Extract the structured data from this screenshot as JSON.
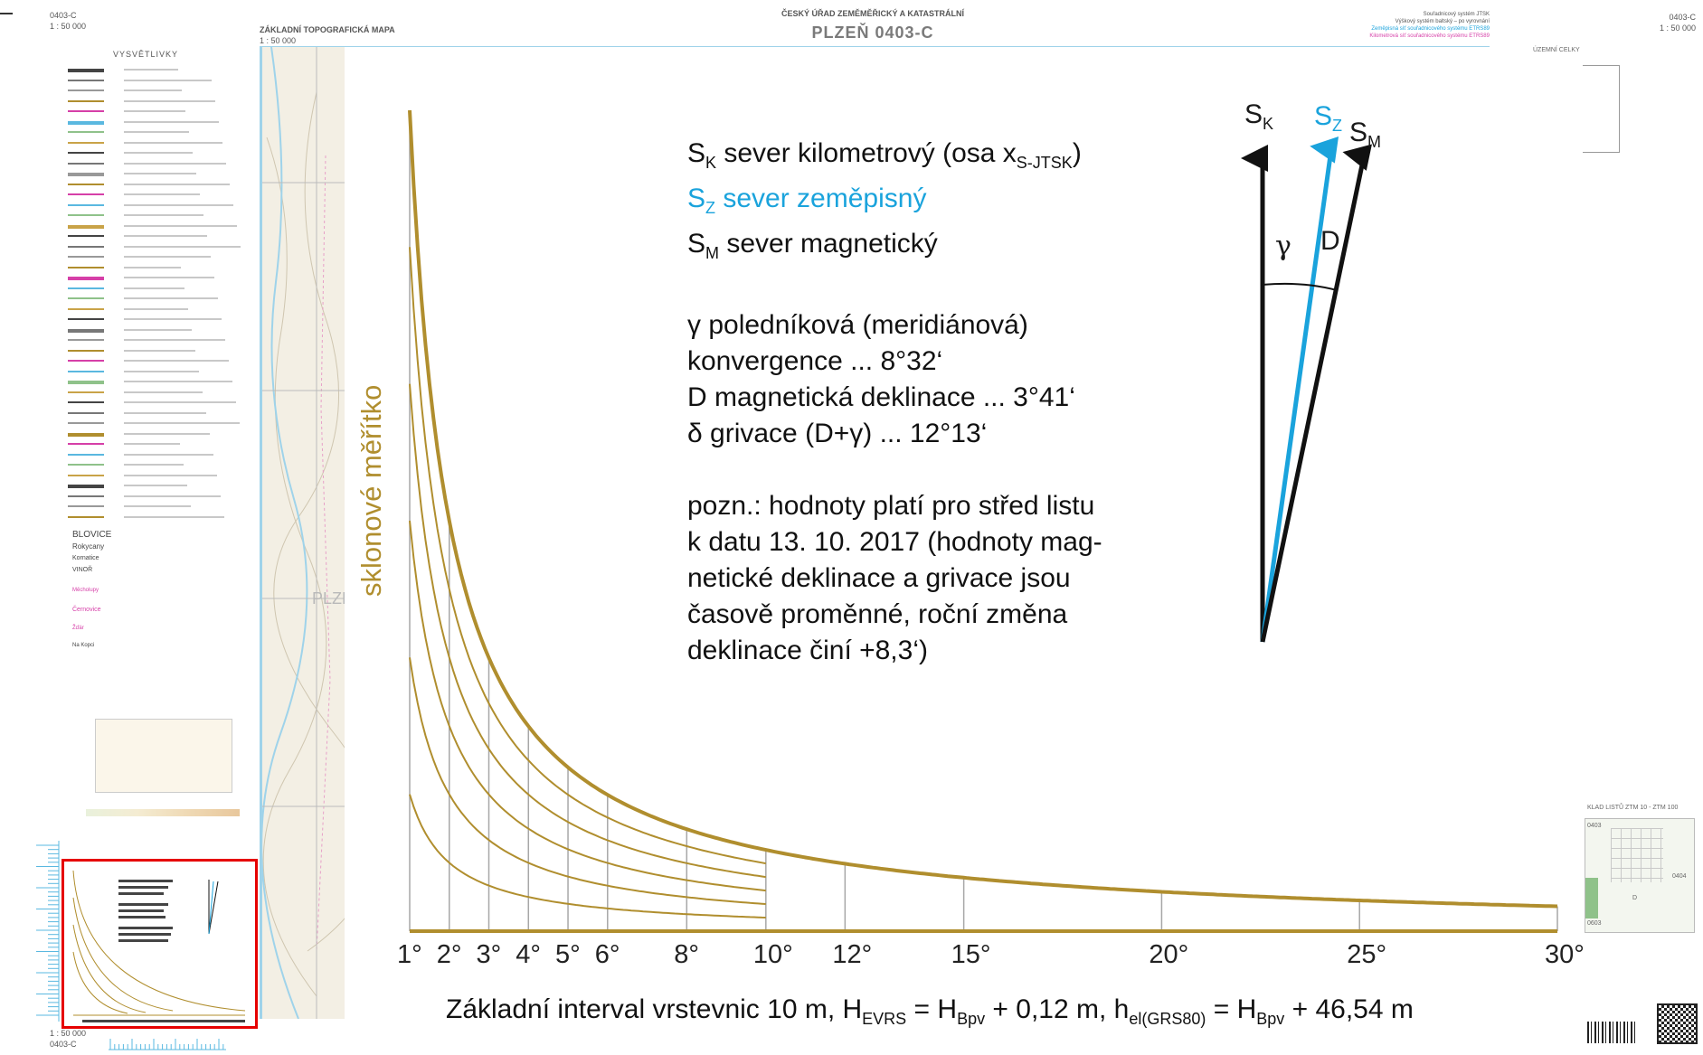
{
  "header": {
    "sheet_code_left": "0403-C",
    "scale_left": "1 : 50 000",
    "map_series": "ZÁKLADNÍ TOPOGRAFICKÁ MAPA",
    "map_series_scale": "1 : 50 000",
    "agency": "ČESKÝ ÚŘAD ZEMĚMĚŘICKÝ A KATASTRÁLNÍ",
    "map_title": "PLZEŇ 0403-C",
    "sheet_code_right": "0403-C",
    "scale_right": "1 : 50 000",
    "coord_systems": [
      {
        "text": "Souřadnicový systém JTSK",
        "color": "#555555"
      },
      {
        "text": "Výškový systém baltský – po vyrovnání",
        "color": "#555555"
      },
      {
        "text": "Zeměpisná síť souřadnicového systému ETRS89",
        "color": "#1aa3dc"
      },
      {
        "text": "Kilometrová síť souřadnicového systému ETRS89",
        "color": "#d63fa8"
      }
    ]
  },
  "legend": {
    "title": "VYSVĚTLIVKY",
    "place_names": [
      "BLOVICE",
      "Rokycany",
      "Kornatice",
      "VINOŘ",
      "Měcholupy",
      "Černovice",
      "Žďár",
      "Na Kopci"
    ]
  },
  "right_panel": {
    "territorial_title": "ÚZEMNÍ CELKY",
    "index_title": "KLAD LISTŮ ZTM 10 - ZTM 100",
    "index_cells": [
      "0403",
      "0404",
      "D",
      "0603"
    ]
  },
  "map_strip": {
    "label": "PLZE"
  },
  "north_legend": {
    "sk": {
      "symbol": "S",
      "sub": "K",
      "text": " sever kilometrový (osa x",
      "text_sub": "S-JTSK",
      "text_end": ")"
    },
    "sz": {
      "symbol": "S",
      "sub": "Z",
      "text": " sever zeměpisný"
    },
    "sm": {
      "symbol": "S",
      "sub": "M",
      "text": " sever magnetický"
    },
    "gamma_line1": "γ poledníková (meridiánová)",
    "gamma_line2": "konvergence ... 8°32‘",
    "decl_line": "D magnetická deklinace ... 3°41‘",
    "griv_line": "δ grivace (D+γ) ... 12°13‘",
    "note_lines": [
      "pozn.: hodnoty platí pro střed listu",
      "k datu 13. 10. 2017 (hodnoty mag-",
      "netické deklinace a grivace jsou",
      "časově proměnné, roční změna",
      "deklinace činí +8,3‘)"
    ]
  },
  "north_diagram": {
    "sk_label": "S",
    "sk_sub": "K",
    "sz_label": "S",
    "sz_sub": "Z",
    "sm_label": "S",
    "sm_sub": "M",
    "gamma_label": "γ",
    "d_label": "D",
    "colors": {
      "sk": "#111111",
      "sz": "#1aa3dc",
      "sm": "#111111"
    }
  },
  "slope_scale": {
    "label": "sklonové měřítko",
    "color": "#b08e2e",
    "degrees": [
      1,
      2,
      3,
      4,
      5,
      6,
      8,
      10,
      12,
      15,
      20,
      25,
      30
    ],
    "tick_labels": [
      "1°",
      "2°",
      "3°",
      "4°",
      "5°",
      "6°",
      "8°",
      "10°",
      "12°",
      "15°",
      "20°",
      "25°",
      "30°"
    ],
    "contour_multiples": [
      1,
      2,
      3,
      4,
      5,
      6
    ]
  },
  "footer": {
    "prefix": "Základní interval vrstevnic 10 m, H",
    "sub1": "EVRS",
    "mid1": " = H",
    "sub2": "Bpv",
    "mid2": " + 0,12 m, h",
    "sub3": "el(GRS80)",
    "mid3": " = H",
    "sub4": "Bpv",
    "suffix": " + 46,54 m"
  },
  "bottom_left": {
    "scale": "1 : 50 000",
    "sheet": "0403-C"
  }
}
